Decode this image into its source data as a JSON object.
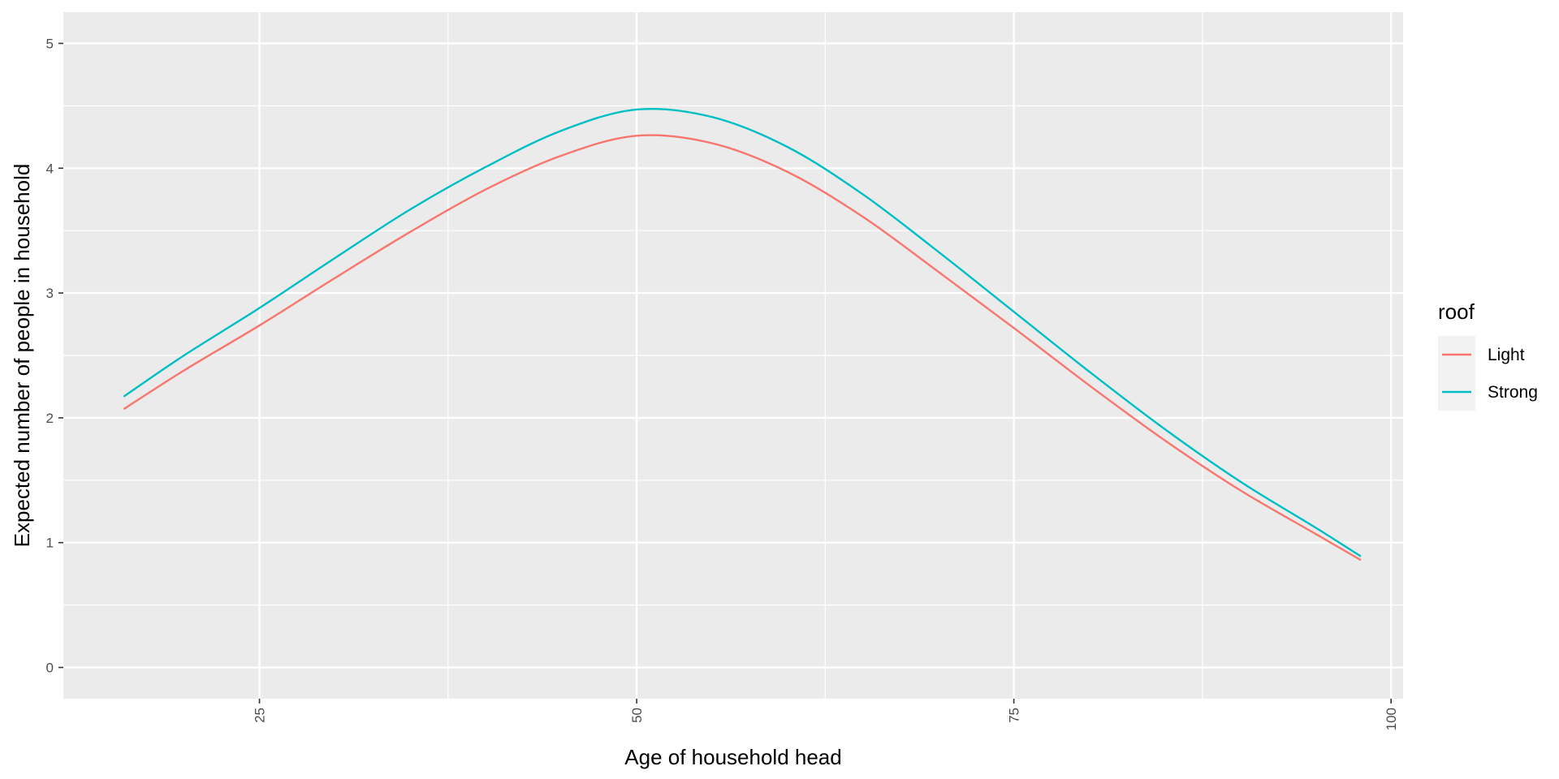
{
  "chart_data": {
    "type": "line",
    "title": "",
    "xlabel": "Age of household head",
    "ylabel": "Expected number of people in household",
    "xlim": [
      12,
      100.8
    ],
    "ylim": [
      -0.25,
      5.25
    ],
    "x_ticks": [
      25,
      50,
      75,
      100
    ],
    "x_tick_labels": [
      "25",
      "50",
      "75",
      "100"
    ],
    "x_minor_ticks": [
      37.5,
      62.5,
      87.5
    ],
    "y_ticks": [
      0,
      1,
      2,
      3,
      4,
      5
    ],
    "y_tick_labels": [
      "0",
      "1",
      "2",
      "3",
      "4",
      "5"
    ],
    "y_minor_ticks": [
      0.5,
      1.5,
      2.5,
      3.5,
      4.5
    ],
    "grid": true,
    "legend": {
      "title": "roof",
      "position": "right",
      "entries": [
        {
          "label": "Light",
          "color": "#F8766D"
        },
        {
          "label": "Strong",
          "color": "#00BFC4"
        }
      ]
    },
    "series": [
      {
        "name": "Light",
        "color": "#F8766D",
        "x": [
          16,
          20,
          25,
          30,
          35,
          40,
          45,
          50,
          55,
          60,
          65,
          70,
          75,
          80,
          85,
          90,
          95,
          98
        ],
        "y": [
          2.07,
          2.38,
          2.74,
          3.12,
          3.49,
          3.83,
          4.1,
          4.26,
          4.2,
          3.97,
          3.61,
          3.17,
          2.72,
          2.26,
          1.82,
          1.42,
          1.07,
          0.86
        ]
      },
      {
        "name": "Strong",
        "color": "#00BFC4",
        "x": [
          16,
          20,
          25,
          30,
          35,
          40,
          45,
          50,
          55,
          60,
          65,
          70,
          75,
          80,
          85,
          90,
          95,
          98
        ],
        "y": [
          2.17,
          2.5,
          2.88,
          3.28,
          3.67,
          4.01,
          4.3,
          4.47,
          4.41,
          4.17,
          3.79,
          3.33,
          2.85,
          2.37,
          1.91,
          1.49,
          1.12,
          0.89
        ]
      }
    ]
  }
}
